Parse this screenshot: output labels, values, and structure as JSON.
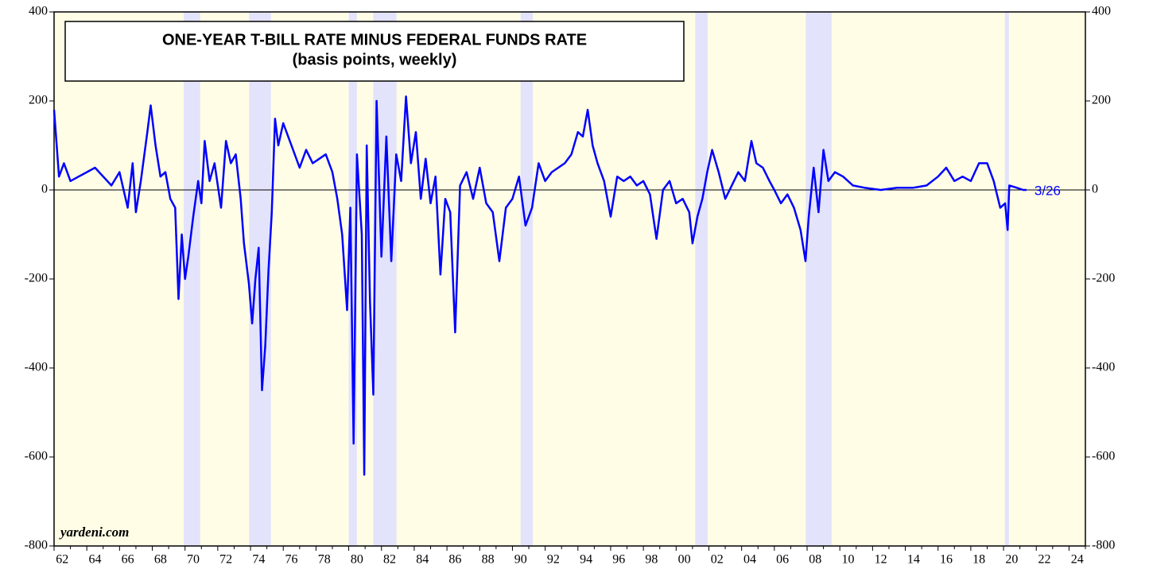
{
  "chart_data": {
    "type": "line",
    "title": "ONE-YEAR T-BILL RATE MINUS FEDERAL FUNDS RATE",
    "subtitle": "(basis points, weekly)",
    "source": "yardeni.com",
    "annotation": "3/26",
    "xlim": [
      1962,
      2025
    ],
    "ylim": [
      -800,
      400
    ],
    "yticks": [
      -800,
      -600,
      -400,
      -200,
      0,
      200,
      400
    ],
    "xticks": [
      {
        "value": 1962,
        "label": "62"
      },
      {
        "value": 1964,
        "label": "64"
      },
      {
        "value": 1966,
        "label": "66"
      },
      {
        "value": 1968,
        "label": "68"
      },
      {
        "value": 1970,
        "label": "70"
      },
      {
        "value": 1972,
        "label": "72"
      },
      {
        "value": 1974,
        "label": "74"
      },
      {
        "value": 1976,
        "label": "76"
      },
      {
        "value": 1978,
        "label": "78"
      },
      {
        "value": 1980,
        "label": "80"
      },
      {
        "value": 1982,
        "label": "82"
      },
      {
        "value": 1984,
        "label": "84"
      },
      {
        "value": 1986,
        "label": "86"
      },
      {
        "value": 1988,
        "label": "88"
      },
      {
        "value": 1990,
        "label": "90"
      },
      {
        "value": 1992,
        "label": "92"
      },
      {
        "value": 1994,
        "label": "94"
      },
      {
        "value": 1996,
        "label": "96"
      },
      {
        "value": 1998,
        "label": "98"
      },
      {
        "value": 2000,
        "label": "00"
      },
      {
        "value": 2002,
        "label": "02"
      },
      {
        "value": 2004,
        "label": "04"
      },
      {
        "value": 2006,
        "label": "06"
      },
      {
        "value": 2008,
        "label": "08"
      },
      {
        "value": 2010,
        "label": "10"
      },
      {
        "value": 2012,
        "label": "12"
      },
      {
        "value": 2014,
        "label": "14"
      },
      {
        "value": 2016,
        "label": "16"
      },
      {
        "value": 2018,
        "label": "18"
      },
      {
        "value": 2020,
        "label": "20"
      },
      {
        "value": 2022,
        "label": "22"
      },
      {
        "value": 2024,
        "label": "24"
      }
    ],
    "recessions": [
      [
        1969.92,
        1970.92
      ],
      [
        1973.92,
        1975.25
      ],
      [
        1980.0,
        1980.5
      ],
      [
        1981.5,
        1982.92
      ],
      [
        1990.5,
        1991.25
      ],
      [
        2001.17,
        2001.92
      ],
      [
        2007.92,
        2009.5
      ],
      [
        2020.08,
        2020.33
      ]
    ],
    "zero_line": true,
    "background": "#fffde6",
    "recession_color": "#e3e3fb",
    "x": [
      1962.0,
      1962.3,
      1962.6,
      1963,
      1963.5,
      1964,
      1964.5,
      1965,
      1965.5,
      1966,
      1966.5,
      1966.8,
      1967,
      1967.3,
      1967.7,
      1967.9,
      1968.2,
      1968.5,
      1968.8,
      1969.1,
      1969.4,
      1969.6,
      1969.8,
      1970.0,
      1970.2,
      1970.5,
      1970.8,
      1971.0,
      1971.2,
      1971.5,
      1971.8,
      1972.2,
      1972.5,
      1972.8,
      1973.1,
      1973.4,
      1973.6,
      1973.9,
      1974.1,
      1974.3,
      1974.5,
      1974.7,
      1974.9,
      1975.1,
      1975.3,
      1975.5,
      1975.7,
      1976.0,
      1976.3,
      1976.6,
      1977.0,
      1977.4,
      1977.8,
      1978.2,
      1978.6,
      1979.0,
      1979.3,
      1979.6,
      1979.9,
      1980.1,
      1980.3,
      1980.5,
      1980.8,
      1980.95,
      1981.1,
      1981.3,
      1981.5,
      1981.7,
      1982.0,
      1982.3,
      1982.6,
      1982.9,
      1983.2,
      1983.5,
      1983.8,
      1984.1,
      1984.4,
      1984.7,
      1985.0,
      1985.3,
      1985.6,
      1985.9,
      1986.2,
      1986.5,
      1986.8,
      1987.2,
      1987.6,
      1988.0,
      1988.4,
      1988.8,
      1989.2,
      1989.6,
      1990.0,
      1990.4,
      1990.8,
      1991.2,
      1991.6,
      1992.0,
      1992.4,
      1992.8,
      1993.2,
      1993.6,
      1994.0,
      1994.3,
      1994.6,
      1994.9,
      1995.2,
      1995.6,
      1996.0,
      1996.4,
      1996.8,
      1997.2,
      1997.6,
      1998.0,
      1998.4,
      1998.8,
      1999.2,
      1999.6,
      2000.0,
      2000.4,
      2000.8,
      2001.0,
      2001.3,
      2001.6,
      2001.9,
      2002.2,
      2002.6,
      2003.0,
      2003.4,
      2003.8,
      2004.2,
      2004.6,
      2004.9,
      2005.3,
      2005.7,
      2006.0,
      2006.4,
      2006.8,
      2007.2,
      2007.6,
      2007.9,
      2008.1,
      2008.4,
      2008.7,
      2009.0,
      2009.3,
      2009.7,
      2010.2,
      2010.8,
      2011.5,
      2012.5,
      2013.5,
      2014.5,
      2015.3,
      2016.0,
      2016.5,
      2017.0,
      2017.5,
      2018.0,
      2018.5,
      2019.0,
      2019.4,
      2019.8,
      2020.1,
      2020.25,
      2020.35,
      2020.8,
      2021.2,
      2021.4
    ],
    "series": [
      {
        "name": "One-year T-bill minus federal funds rate",
        "color": "#0000ff",
        "values": [
          180,
          30,
          60,
          20,
          30,
          40,
          50,
          30,
          10,
          40,
          -40,
          60,
          -50,
          20,
          130,
          190,
          100,
          30,
          40,
          -20,
          -40,
          -245,
          -100,
          -200,
          -150,
          -60,
          20,
          -30,
          110,
          20,
          60,
          -40,
          110,
          60,
          80,
          -20,
          -120,
          -210,
          -300,
          -200,
          -130,
          -450,
          -350,
          -180,
          -50,
          160,
          100,
          150,
          120,
          90,
          50,
          90,
          60,
          70,
          80,
          40,
          -20,
          -100,
          -270,
          -40,
          -570,
          80,
          -100,
          -640,
          100,
          -250,
          -460,
          200,
          -150,
          120,
          -160,
          80,
          20,
          210,
          60,
          130,
          -20,
          70,
          -30,
          30,
          -190,
          -20,
          -50,
          -320,
          10,
          40,
          -20,
          50,
          -30,
          -50,
          -160,
          -40,
          -20,
          30,
          -80,
          -40,
          60,
          20,
          40,
          50,
          60,
          80,
          130,
          120,
          180,
          100,
          60,
          20,
          -60,
          30,
          20,
          30,
          10,
          20,
          -10,
          -110,
          0,
          20,
          -30,
          -20,
          -50,
          -120,
          -60,
          -20,
          40,
          90,
          40,
          -20,
          10,
          40,
          20,
          110,
          60,
          50,
          20,
          0,
          -30,
          -10,
          -40,
          -90,
          -160,
          -60,
          50,
          -50,
          90,
          20,
          40,
          30,
          10,
          5,
          0,
          5,
          5,
          10,
          30,
          50,
          20,
          30,
          20,
          60,
          60,
          20,
          -40,
          -30,
          -90,
          10,
          5,
          0,
          0
        ]
      }
    ]
  }
}
